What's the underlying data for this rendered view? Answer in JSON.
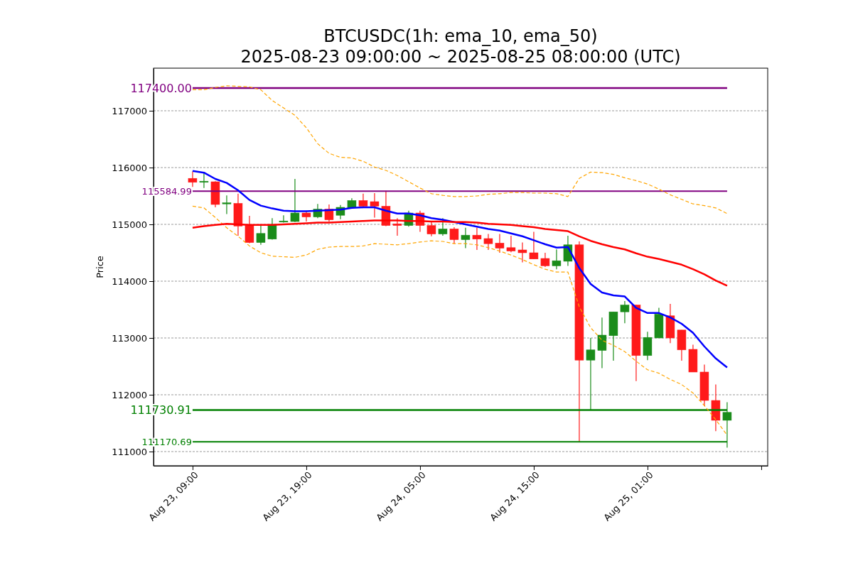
{
  "chart_data": {
    "type": "candlestick",
    "title": "BTCUSDC(1h: ema_10, ema_50)",
    "subtitle": "2025-08-23 09:00:00 ~ 2025-08-25 08:00:00 (UTC)",
    "ylabel": "Price",
    "x": [
      "2025-08-23T09:00",
      "2025-08-23T10:00",
      "2025-08-23T11:00",
      "2025-08-23T12:00",
      "2025-08-23T13:00",
      "2025-08-23T14:00",
      "2025-08-23T15:00",
      "2025-08-23T16:00",
      "2025-08-23T17:00",
      "2025-08-23T18:00",
      "2025-08-23T19:00",
      "2025-08-23T20:00",
      "2025-08-23T21:00",
      "2025-08-23T22:00",
      "2025-08-23T23:00",
      "2025-08-24T00:00",
      "2025-08-24T01:00",
      "2025-08-24T02:00",
      "2025-08-24T03:00",
      "2025-08-24T04:00",
      "2025-08-24T05:00",
      "2025-08-24T06:00",
      "2025-08-24T07:00",
      "2025-08-24T08:00",
      "2025-08-24T09:00",
      "2025-08-24T10:00",
      "2025-08-24T11:00",
      "2025-08-24T12:00",
      "2025-08-24T13:00",
      "2025-08-24T14:00",
      "2025-08-24T15:00",
      "2025-08-24T16:00",
      "2025-08-24T17:00",
      "2025-08-24T18:00",
      "2025-08-24T19:00",
      "2025-08-24T20:00",
      "2025-08-24T21:00",
      "2025-08-24T22:00",
      "2025-08-24T23:00",
      "2025-08-25T00:00",
      "2025-08-25T01:00",
      "2025-08-25T02:00",
      "2025-08-25T03:00",
      "2025-08-25T04:00",
      "2025-08-25T05:00",
      "2025-08-25T06:00",
      "2025-08-25T07:00",
      "2025-08-25T08:00"
    ],
    "xlim": [
      "2025-08-23T05:34",
      "2025-08-25T11:34"
    ],
    "xticks": [
      {
        "value": "2025-08-23T09:00",
        "label": "Aug 23, 09:00"
      },
      {
        "value": "2025-08-23T19:00",
        "label": "Aug 23, 19:00"
      },
      {
        "value": "2025-08-24T05:00",
        "label": "Aug 24, 05:00"
      },
      {
        "value": "2025-08-24T15:00",
        "label": "Aug 24, 15:00"
      },
      {
        "value": "2025-08-25T01:00",
        "label": "Aug 25, 01:00"
      },
      {
        "value": "2025-08-25T11:00",
        "label": null
      }
    ],
    "ylim": [
      110750,
      117750
    ],
    "yticks": [
      111000,
      112000,
      113000,
      114000,
      115000,
      116000,
      117000
    ],
    "grid": "y",
    "series": [
      {
        "type": "line",
        "color": "#ffa500",
        "line_style": "dashed",
        "values": [
          117370,
          117370,
          117410,
          117440,
          117430,
          117420,
          117370,
          117180,
          117050,
          116920,
          116700,
          116420,
          116250,
          116180,
          116170,
          116110,
          116010,
          115950,
          115860,
          115750,
          115640,
          115540,
          115510,
          115490,
          115490,
          115500,
          115530,
          115540,
          115560,
          115560,
          115550,
          115550,
          115540,
          115490,
          115810,
          115920,
          115910,
          115880,
          115820,
          115770,
          115710,
          115620,
          115520,
          115440,
          115360,
          115330,
          115290,
          115190
        ]
      },
      {
        "type": "line",
        "color": "#ffa500",
        "line_style": "dashed",
        "values": [
          115320,
          115290,
          115120,
          114940,
          114790,
          114620,
          114500,
          114440,
          114430,
          114420,
          114460,
          114560,
          114600,
          114610,
          114610,
          114620,
          114660,
          114650,
          114640,
          114660,
          114690,
          114710,
          114700,
          114660,
          114660,
          114640,
          114590,
          114530,
          114460,
          114380,
          114290,
          114210,
          114160,
          114160,
          113550,
          113180,
          112960,
          112870,
          112760,
          112590,
          112440,
          112380,
          112270,
          112180,
          112030,
          111810,
          111560,
          111290
        ]
      },
      {
        "type": "line",
        "color": "#0000ff",
        "line_style": "solid",
        "values": [
          115940,
          115910,
          115800,
          115730,
          115600,
          115430,
          115330,
          115280,
          115240,
          115230,
          115230,
          115240,
          115250,
          115260,
          115290,
          115300,
          115300,
          115240,
          115190,
          115190,
          115160,
          115110,
          115080,
          115040,
          115000,
          114960,
          114920,
          114890,
          114840,
          114790,
          114720,
          114650,
          114590,
          114600,
          114230,
          113950,
          113800,
          113750,
          113730,
          113530,
          113440,
          113440,
          113360,
          113250,
          113090,
          112850,
          112640,
          112480
        ]
      },
      {
        "type": "line",
        "color": "#ff0000",
        "line_style": "solid",
        "values": [
          114940,
          114970,
          114990,
          115010,
          115000,
          114990,
          114990,
          114990,
          115000,
          115010,
          115020,
          115030,
          115030,
          115040,
          115050,
          115060,
          115070,
          115070,
          115070,
          115060,
          115060,
          115050,
          115050,
          115040,
          115040,
          115030,
          115010,
          115000,
          114990,
          114970,
          114950,
          114920,
          114900,
          114880,
          114790,
          114710,
          114650,
          114600,
          114560,
          114490,
          114430,
          114390,
          114340,
          114290,
          114210,
          114120,
          114010,
          113920
        ]
      },
      {
        "type": "candlestick",
        "ohlc": [
          [
            115810,
            115930,
            115660,
            115740
          ],
          [
            115740,
            115910,
            115640,
            115760
          ],
          [
            115750,
            115760,
            115300,
            115350
          ],
          [
            115360,
            115510,
            115180,
            115380
          ],
          [
            115370,
            115540,
            114800,
            114970
          ],
          [
            114980,
            115150,
            114670,
            114680
          ],
          [
            114680,
            114980,
            114640,
            114840
          ],
          [
            114740,
            115110,
            114730,
            115000
          ],
          [
            115040,
            115160,
            115030,
            115060
          ],
          [
            115050,
            115800,
            115040,
            115200
          ],
          [
            115200,
            115240,
            115050,
            115130
          ],
          [
            115130,
            115360,
            115110,
            115270
          ],
          [
            115270,
            115350,
            115050,
            115080
          ],
          [
            115160,
            115340,
            115090,
            115300
          ],
          [
            115290,
            115460,
            115280,
            115420
          ],
          [
            115420,
            115540,
            115310,
            115320
          ],
          [
            115400,
            115550,
            115120,
            115320
          ],
          [
            115320,
            115590,
            114970,
            114980
          ],
          [
            115010,
            115110,
            114800,
            114980
          ],
          [
            114980,
            115240,
            114960,
            115200
          ],
          [
            115200,
            115240,
            114870,
            114980
          ],
          [
            114980,
            115050,
            114790,
            114830
          ],
          [
            114830,
            115110,
            114800,
            114920
          ],
          [
            114920,
            114950,
            114660,
            114730
          ],
          [
            114730,
            114940,
            114580,
            114810
          ],
          [
            114810,
            114940,
            114550,
            114740
          ],
          [
            114750,
            114830,
            114550,
            114660
          ],
          [
            114670,
            114830,
            114500,
            114580
          ],
          [
            114590,
            114800,
            114510,
            114530
          ],
          [
            114550,
            114680,
            114330,
            114500
          ],
          [
            114500,
            114870,
            114390,
            114390
          ],
          [
            114400,
            114500,
            114250,
            114270
          ],
          [
            114270,
            114560,
            114210,
            114360
          ],
          [
            114350,
            114800,
            114270,
            114640
          ],
          [
            114640,
            114700,
            111170,
            112610
          ],
          [
            112610,
            113000,
            111730,
            112790
          ],
          [
            112780,
            113360,
            112470,
            113050
          ],
          [
            113040,
            113460,
            112600,
            113460
          ],
          [
            113460,
            113650,
            113260,
            113580
          ],
          [
            113580,
            113580,
            112240,
            112690
          ],
          [
            112690,
            113110,
            112610,
            113010
          ],
          [
            113000,
            113530,
            113000,
            113420
          ],
          [
            113390,
            113600,
            112910,
            113000
          ],
          [
            113140,
            113140,
            112600,
            112790
          ],
          [
            112800,
            112880,
            112400,
            112400
          ],
          [
            112400,
            112530,
            111800,
            111900
          ],
          [
            111900,
            112180,
            111360,
            111550
          ],
          [
            111550,
            111870,
            111070,
            111690
          ]
        ],
        "colors": [
          "#ff1a1a",
          "#1a8c1a",
          "#ff1a1a",
          "#1a8c1a",
          "#ff1a1a",
          "#ff1a1a",
          "#1a8c1a",
          "#1a8c1a",
          "#1a8c1a",
          "#1a8c1a",
          "#ff1a1a",
          "#1a8c1a",
          "#ff1a1a",
          "#1a8c1a",
          "#1a8c1a",
          "#ff1a1a",
          "#ff1a1a",
          "#ff1a1a",
          "#ff1a1a",
          "#1a8c1a",
          "#ff1a1a",
          "#ff1a1a",
          "#1a8c1a",
          "#ff1a1a",
          "#1a8c1a",
          "#ff1a1a",
          "#ff1a1a",
          "#ff1a1a",
          "#ff1a1a",
          "#ff1a1a",
          "#ff1a1a",
          "#ff1a1a",
          "#1a8c1a",
          "#1a8c1a",
          "#ff1a1a",
          "#1a8c1a",
          "#1a8c1a",
          "#1a8c1a",
          "#1a8c1a",
          "#ff1a1a",
          "#1a8c1a",
          "#1a8c1a",
          "#ff1a1a",
          "#ff1a1a",
          "#ff1a1a",
          "#ff1a1a",
          "#ff1a1a",
          "#1a8c1a"
        ]
      }
    ],
    "ref_lines": [
      {
        "axis": "y",
        "value": 117400,
        "label": "117400.00",
        "color": "#800080"
      },
      {
        "axis": "y",
        "value": 115584.99,
        "label": "115584.99",
        "color": "#800080"
      },
      {
        "axis": "y",
        "value": 111730.91,
        "label": "111730.91",
        "color": "#008000"
      },
      {
        "axis": "y",
        "value": 111170.69,
        "label": "111170.69",
        "color": "#008000"
      }
    ]
  }
}
